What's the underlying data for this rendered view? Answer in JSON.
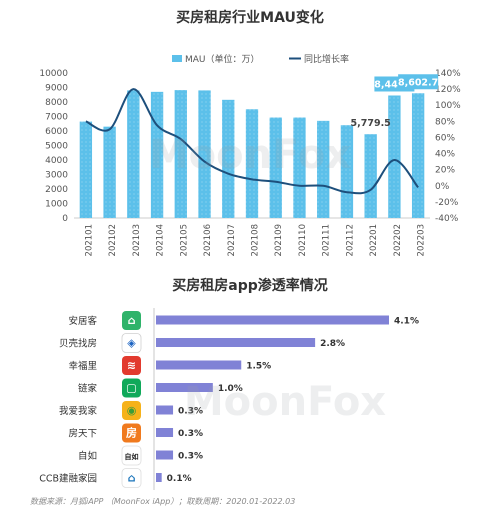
{
  "chart_data": [
    {
      "type": "bar+line",
      "title": "买房租房行业MAU变化",
      "categories": [
        "202101",
        "202102",
        "202103",
        "202104",
        "202105",
        "202106",
        "202107",
        "202108",
        "202109",
        "202110",
        "202111",
        "202112",
        "202201",
        "202202",
        "202203"
      ],
      "series": [
        {
          "name": "MAU（单位：万）",
          "type": "bar",
          "axis": "left",
          "values": [
            6650,
            6300,
            8800,
            8700,
            8820,
            8800,
            8150,
            7500,
            6930,
            6930,
            6700,
            6400,
            5779.5,
            8449.1,
            8602.7
          ]
        },
        {
          "name": "同比增长率",
          "type": "line",
          "axis": "right",
          "values": [
            0.8,
            0.7,
            1.2,
            0.75,
            0.58,
            0.3,
            0.15,
            0.08,
            0.05,
            0.0,
            0.0,
            -0.08,
            -0.05,
            0.32,
            -0.02
          ]
        }
      ],
      "data_labels": [
        {
          "index": 12,
          "text": "5,779.5"
        },
        {
          "index": 13,
          "text": "8,449.1"
        },
        {
          "index": 14,
          "text": "8,602.7"
        }
      ],
      "y_left": {
        "min": 0,
        "max": 10000,
        "ticks": [
          "0",
          "1000",
          "2000",
          "3000",
          "4000",
          "5000",
          "6000",
          "7000",
          "8000",
          "9000",
          "10000"
        ]
      },
      "y_right": {
        "min": -0.4,
        "max": 1.4,
        "ticks": [
          "-40%",
          "-20%",
          "0%",
          "20%",
          "40%",
          "60%",
          "80%",
          "100%",
          "120%",
          "140%"
        ]
      },
      "legend_position": "top",
      "colors": {
        "bar": "#5cc0ea",
        "line": "#1d4f7c",
        "label_box": "#5cc0ea"
      }
    },
    {
      "type": "bar",
      "orientation": "horizontal",
      "title": "买房租房app渗透率情况",
      "categories": [
        "安居客",
        "贝壳找房",
        "幸福里",
        "链家",
        "我爱我家",
        "房天下",
        "自如",
        "CCB建融家园"
      ],
      "values": [
        4.1,
        2.8,
        1.5,
        1.0,
        0.3,
        0.3,
        0.3,
        0.1
      ],
      "value_labels": [
        "4.1%",
        "2.8%",
        "1.5%",
        "1.0%",
        "0.3%",
        "0.3%",
        "0.3%",
        "0.1%"
      ],
      "icons": [
        {
          "name": "anjuke-app-icon",
          "bg": "#2fb36a",
          "glyph": "⌂",
          "text": "#ffffff"
        },
        {
          "name": "beike-app-icon",
          "bg": "#ffffff",
          "glyph": "◈",
          "text": "#1a63c2",
          "border": "#d0d0d0"
        },
        {
          "name": "xingfuli-app-icon",
          "bg": "#e23a2e",
          "glyph": "≋",
          "text": "#ffffff"
        },
        {
          "name": "lianjia-app-icon",
          "bg": "#0fa95a",
          "glyph": "▢",
          "text": "#ffffff"
        },
        {
          "name": "5i5j-app-icon",
          "bg": "#f6b21a",
          "glyph": "◉",
          "text": "#3a9d3a"
        },
        {
          "name": "fang-app-icon",
          "bg": "#f07a1e",
          "glyph": "房",
          "text": "#ffffff"
        },
        {
          "name": "ziroom-app-icon",
          "bg": "#ffffff",
          "glyph": "自如",
          "text": "#222222",
          "border": "#dddddd"
        },
        {
          "name": "ccb-app-icon",
          "bg": "#ffffff",
          "glyph": "⌂",
          "text": "#1b75bb",
          "border": "#dddddd"
        }
      ],
      "colors": {
        "bar": "#8082d6"
      }
    }
  ],
  "watermark": "MoonFox",
  "footer": {
    "source": "数据来源：月狐iAPP （MoonFox iApp）；取数周期：2020.01-2022.03"
  }
}
